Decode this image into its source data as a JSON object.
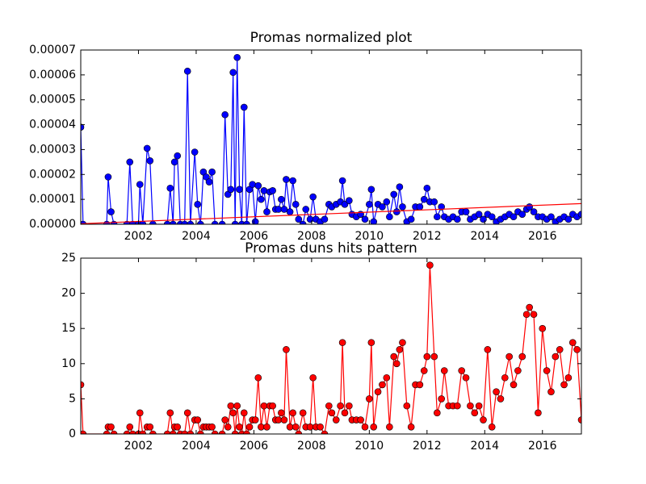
{
  "chart_data": [
    {
      "type": "line",
      "title": "Promas normalized plot",
      "x": [
        2000.0,
        2000.08,
        2000.9,
        2000.95,
        2001.05,
        2001.15,
        2001.6,
        2001.7,
        2001.8,
        2002.0,
        2002.05,
        2002.15,
        2002.3,
        2002.4,
        2002.5,
        2003.0,
        2003.1,
        2003.2,
        2003.25,
        2003.35,
        2003.45,
        2003.6,
        2003.7,
        2003.8,
        2003.95,
        2004.05,
        2004.15,
        2004.25,
        2004.35,
        2004.45,
        2004.55,
        2004.65,
        2004.9,
        2005.0,
        2005.1,
        2005.2,
        2005.28,
        2005.35,
        2005.42,
        2005.5,
        2005.58,
        2005.66,
        2005.75,
        2005.85,
        2005.95,
        2006.05,
        2006.15,
        2006.25,
        2006.35,
        2006.45,
        2006.55,
        2006.65,
        2006.75,
        2006.85,
        2006.95,
        2007.05,
        2007.12,
        2007.25,
        2007.35,
        2007.45,
        2007.55,
        2007.7,
        2007.8,
        2007.95,
        2008.05,
        2008.15,
        2008.3,
        2008.45,
        2008.6,
        2008.7,
        2008.85,
        2009.0,
        2009.07,
        2009.15,
        2009.3,
        2009.4,
        2009.55,
        2009.7,
        2009.85,
        2010.0,
        2010.07,
        2010.15,
        2010.3,
        2010.45,
        2010.6,
        2010.7,
        2010.85,
        2010.95,
        2011.05,
        2011.15,
        2011.3,
        2011.45,
        2011.6,
        2011.75,
        2011.9,
        2012.0,
        2012.1,
        2012.25,
        2012.35,
        2012.5,
        2012.6,
        2012.75,
        2012.9,
        2013.05,
        2013.2,
        2013.35,
        2013.5,
        2013.65,
        2013.8,
        2013.95,
        2014.1,
        2014.25,
        2014.4,
        2014.55,
        2014.7,
        2014.85,
        2015.0,
        2015.15,
        2015.3,
        2015.45,
        2015.55,
        2015.7,
        2015.85,
        2016.0,
        2016.15,
        2016.3,
        2016.45,
        2016.6,
        2016.75,
        2016.9,
        2017.05,
        2017.2,
        2017.35
      ],
      "series": [
        {
          "color": "#0000ff",
          "marker": true,
          "values": [
            3.9e-05,
            0,
            0,
            1.9e-05,
            5e-06,
            0,
            0,
            2.5e-05,
            0,
            0,
            1.6e-05,
            0,
            3.05e-05,
            2.55e-05,
            0,
            0,
            1.45e-05,
            0,
            2.5e-05,
            2.75e-05,
            0,
            0,
            6.15e-05,
            0,
            2.9e-05,
            8e-06,
            0,
            2.1e-05,
            1.9e-05,
            1.7e-05,
            2.1e-05,
            0,
            0,
            4.4e-05,
            1.2e-05,
            1.4e-05,
            6.1e-05,
            0,
            6.7e-05,
            1.4e-05,
            0,
            4.7e-05,
            0,
            1.4e-05,
            1.6e-05,
            1e-06,
            1.55e-05,
            1e-05,
            1.35e-05,
            5e-06,
            1.3e-05,
            1.35e-05,
            6e-06,
            6e-06,
            1e-05,
            6e-06,
            1.8e-05,
            5e-06,
            1.75e-05,
            8e-06,
            2e-06,
            0,
            6e-06,
            2e-06,
            1.1e-05,
            2e-06,
            1e-06,
            2e-06,
            8e-06,
            7e-06,
            8e-06,
            9e-06,
            1.75e-05,
            8e-06,
            9.5e-06,
            4e-06,
            3e-06,
            4e-06,
            2e-06,
            8e-06,
            1.4e-05,
            1e-06,
            8e-06,
            7e-06,
            9e-06,
            3e-06,
            1.2e-05,
            5e-06,
            1.5e-05,
            7e-06,
            1e-06,
            2e-06,
            7e-06,
            7e-06,
            1e-05,
            1.45e-05,
            9e-06,
            9e-06,
            3e-06,
            7e-06,
            3e-06,
            2e-06,
            3e-06,
            2e-06,
            5e-06,
            5e-06,
            2e-06,
            3e-06,
            4e-06,
            2e-06,
            4e-06,
            3e-06,
            1e-06,
            2e-06,
            3e-06,
            4e-06,
            3e-06,
            5e-06,
            4e-06,
            6e-06,
            7e-06,
            5e-06,
            3e-06,
            3e-06,
            2e-06,
            3e-06,
            1e-06,
            2e-06,
            3e-06,
            2e-06,
            4e-06,
            3e-06,
            4e-06
          ]
        },
        {
          "color": "#ff0000",
          "marker": false,
          "x": [
            2000.0,
            2017.35
          ],
          "values": [
            2e-07,
            8.3e-06
          ]
        }
      ],
      "xlim": [
        2000.0,
        2017.35
      ],
      "ylim": [
        0,
        7e-05
      ],
      "xticks": [
        2002,
        2004,
        2006,
        2008,
        2010,
        2012,
        2014,
        2016
      ],
      "yticks": [
        {
          "value": 0,
          "label": "0.00000"
        },
        {
          "value": 1e-05,
          "label": "0.00001"
        },
        {
          "value": 2e-05,
          "label": "0.00002"
        },
        {
          "value": 3e-05,
          "label": "0.00003"
        },
        {
          "value": 4e-05,
          "label": "0.00004"
        },
        {
          "value": 5e-05,
          "label": "0.00005"
        },
        {
          "value": 6e-05,
          "label": "0.00006"
        },
        {
          "value": 7e-05,
          "label": "0.00007"
        }
      ]
    },
    {
      "type": "line",
      "title": "Promas duns hits pattern",
      "x": [
        2000.0,
        2000.08,
        2000.9,
        2000.95,
        2001.05,
        2001.15,
        2001.6,
        2001.7,
        2001.8,
        2002.0,
        2002.05,
        2002.15,
        2002.3,
        2002.4,
        2002.5,
        2003.0,
        2003.1,
        2003.2,
        2003.25,
        2003.35,
        2003.45,
        2003.6,
        2003.7,
        2003.8,
        2003.95,
        2004.05,
        2004.15,
        2004.25,
        2004.35,
        2004.45,
        2004.55,
        2004.65,
        2004.9,
        2005.0,
        2005.1,
        2005.2,
        2005.28,
        2005.35,
        2005.42,
        2005.5,
        2005.58,
        2005.66,
        2005.75,
        2005.85,
        2005.95,
        2006.05,
        2006.15,
        2006.25,
        2006.35,
        2006.45,
        2006.55,
        2006.65,
        2006.75,
        2006.85,
        2006.95,
        2007.05,
        2007.12,
        2007.25,
        2007.35,
        2007.45,
        2007.55,
        2007.7,
        2007.8,
        2007.95,
        2008.05,
        2008.15,
        2008.3,
        2008.45,
        2008.6,
        2008.7,
        2008.85,
        2009.0,
        2009.07,
        2009.15,
        2009.3,
        2009.4,
        2009.55,
        2009.7,
        2009.85,
        2010.0,
        2010.07,
        2010.15,
        2010.3,
        2010.45,
        2010.6,
        2010.7,
        2010.85,
        2010.95,
        2011.05,
        2011.15,
        2011.3,
        2011.45,
        2011.6,
        2011.75,
        2011.9,
        2012.0,
        2012.1,
        2012.25,
        2012.35,
        2012.5,
        2012.6,
        2012.75,
        2012.9,
        2013.05,
        2013.2,
        2013.35,
        2013.5,
        2013.65,
        2013.8,
        2013.95,
        2014.1,
        2014.25,
        2014.4,
        2014.55,
        2014.7,
        2014.85,
        2015.0,
        2015.15,
        2015.3,
        2015.45,
        2015.55,
        2015.7,
        2015.85,
        2016.0,
        2016.15,
        2016.3,
        2016.45,
        2016.6,
        2016.75,
        2016.9,
        2017.05,
        2017.2,
        2017.35
      ],
      "series": [
        {
          "color": "#ff0000",
          "marker": true,
          "values": [
            7,
            0,
            0,
            1,
            1,
            0,
            0,
            1,
            0,
            0,
            3,
            0,
            1,
            1,
            0,
            0,
            3,
            0,
            1,
            1,
            0,
            0,
            3,
            0,
            2,
            2,
            0,
            1,
            1,
            1,
            1,
            0,
            0,
            2,
            1,
            4,
            3,
            0,
            4,
            1,
            0,
            3,
            0,
            1,
            2,
            2,
            8,
            1,
            4,
            1,
            4,
            4,
            2,
            2,
            3,
            2,
            12,
            1,
            3,
            1,
            0,
            3,
            1,
            1,
            8,
            1,
            1,
            0,
            4,
            3,
            2,
            4,
            13,
            3,
            4,
            2,
            2,
            2,
            1,
            5,
            13,
            1,
            6,
            7,
            8,
            1,
            11,
            10,
            12,
            13,
            4,
            1,
            7,
            7,
            9,
            11,
            24,
            11,
            3,
            5,
            9,
            4,
            4,
            4,
            9,
            8,
            4,
            3,
            4,
            2,
            12,
            1,
            6,
            5,
            8,
            11,
            7,
            9,
            11,
            17,
            18,
            17,
            3,
            15,
            9,
            6,
            11,
            12,
            7,
            8,
            13,
            12,
            2
          ]
        }
      ],
      "xlim": [
        2000.0,
        2017.35
      ],
      "ylim": [
        0,
        25
      ],
      "xticks": [
        2002,
        2004,
        2006,
        2008,
        2010,
        2012,
        2014,
        2016
      ],
      "yticks": [
        0,
        5,
        10,
        15,
        20,
        25
      ]
    }
  ]
}
